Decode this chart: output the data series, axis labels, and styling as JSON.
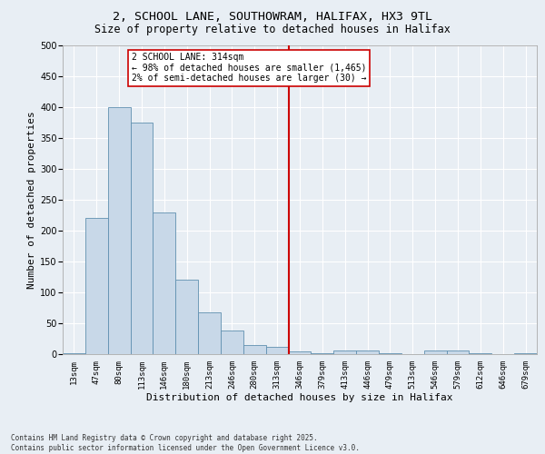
{
  "title_line1": "2, SCHOOL LANE, SOUTHOWRAM, HALIFAX, HX3 9TL",
  "title_line2": "Size of property relative to detached houses in Halifax",
  "xlabel": "Distribution of detached houses by size in Halifax",
  "ylabel": "Number of detached properties",
  "footnote": "Contains HM Land Registry data © Crown copyright and database right 2025.\nContains public sector information licensed under the Open Government Licence v3.0.",
  "bar_labels": [
    "13sqm",
    "47sqm",
    "80sqm",
    "113sqm",
    "146sqm",
    "180sqm",
    "213sqm",
    "246sqm",
    "280sqm",
    "313sqm",
    "346sqm",
    "379sqm",
    "413sqm",
    "446sqm",
    "479sqm",
    "513sqm",
    "546sqm",
    "579sqm",
    "612sqm",
    "646sqm",
    "679sqm"
  ],
  "bar_values": [
    2,
    220,
    400,
    375,
    230,
    120,
    68,
    38,
    15,
    12,
    5,
    1,
    6,
    6,
    1,
    0,
    6,
    6,
    1,
    0,
    1
  ],
  "bar_color": "#c8d8e8",
  "bar_edgecolor": "#6090b0",
  "vline_x_index": 9,
  "vline_color": "#cc0000",
  "annotation_text": "2 SCHOOL LANE: 314sqm\n← 98% of detached houses are smaller (1,465)\n2% of semi-detached houses are larger (30) →",
  "annotation_box_color": "#cc0000",
  "ylim": [
    0,
    500
  ],
  "yticks": [
    0,
    50,
    100,
    150,
    200,
    250,
    300,
    350,
    400,
    450,
    500
  ],
  "background_color": "#e8eef4",
  "plot_background": "#e8eef4",
  "grid_color": "#ffffff",
  "title_fontsize": 9.5,
  "subtitle_fontsize": 8.5,
  "xlabel_fontsize": 8,
  "ylabel_fontsize": 8,
  "tick_fontsize": 6.5,
  "annot_fontsize": 7,
  "footnote_fontsize": 5.5
}
